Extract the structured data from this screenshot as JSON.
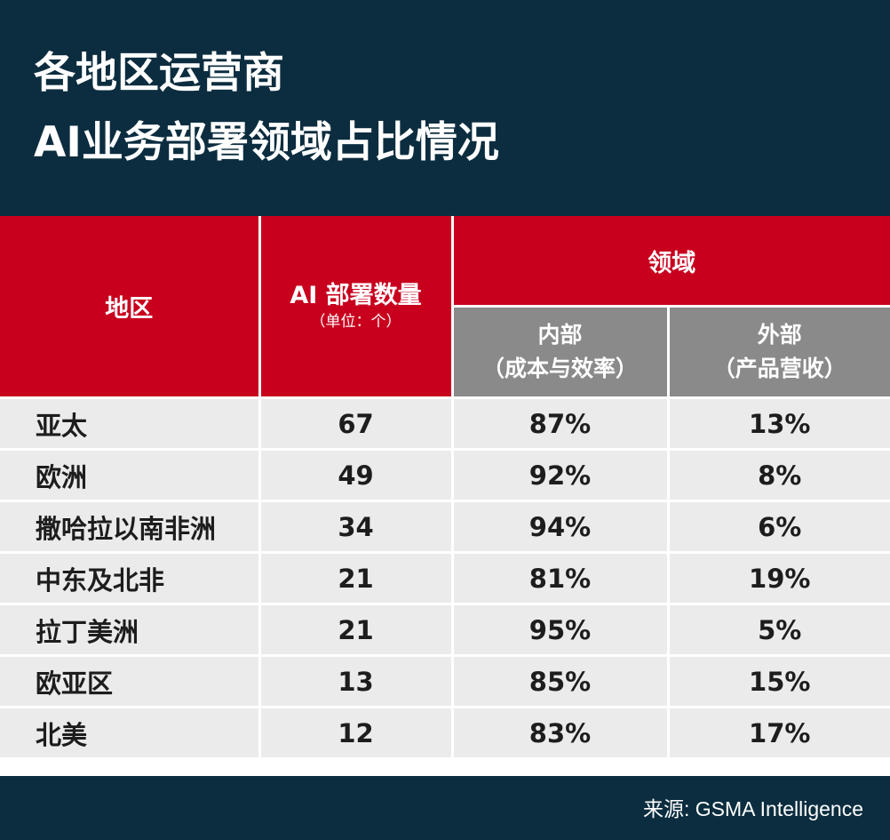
{
  "title": {
    "line1": "各地区运营商",
    "line2": "AI业务部署领域占比情况"
  },
  "colors": {
    "header_bg": "#0c2d3f",
    "header_red": "#c8001e",
    "subheader_gray": "#8a8a8a",
    "row_bg": "#ebebeb"
  },
  "table": {
    "headers": {
      "region": "地区",
      "count": "AI 部署数量",
      "count_unit": "（单位：个）",
      "domain": "领域",
      "internal_line1": "内部",
      "internal_line2": "（成本与效率）",
      "external_line1": "外部",
      "external_line2": "（产品营收）"
    }
  },
  "chart_data": {
    "type": "table",
    "columns": [
      "地区",
      "AI 部署数量",
      "内部（成本与效率）",
      "外部（产品营收）"
    ],
    "rows": [
      {
        "region": "亚太",
        "count": "67",
        "internal": "87%",
        "external": "13%"
      },
      {
        "region": "欧洲",
        "count": "49",
        "internal": "92%",
        "external": "8%"
      },
      {
        "region": "撒哈拉以南非洲",
        "count": "34",
        "internal": "94%",
        "external": "6%"
      },
      {
        "region": "中东及北非",
        "count": "21",
        "internal": "81%",
        "external": "19%"
      },
      {
        "region": "拉丁美洲",
        "count": "21",
        "internal": "95%",
        "external": "5%"
      },
      {
        "region": "欧亚区",
        "count": "13",
        "internal": "85%",
        "external": "15%"
      },
      {
        "region": "北美",
        "count": "12",
        "internal": "83%",
        "external": "17%"
      }
    ]
  },
  "footer": {
    "source": "来源: GSMA Intelligence"
  }
}
